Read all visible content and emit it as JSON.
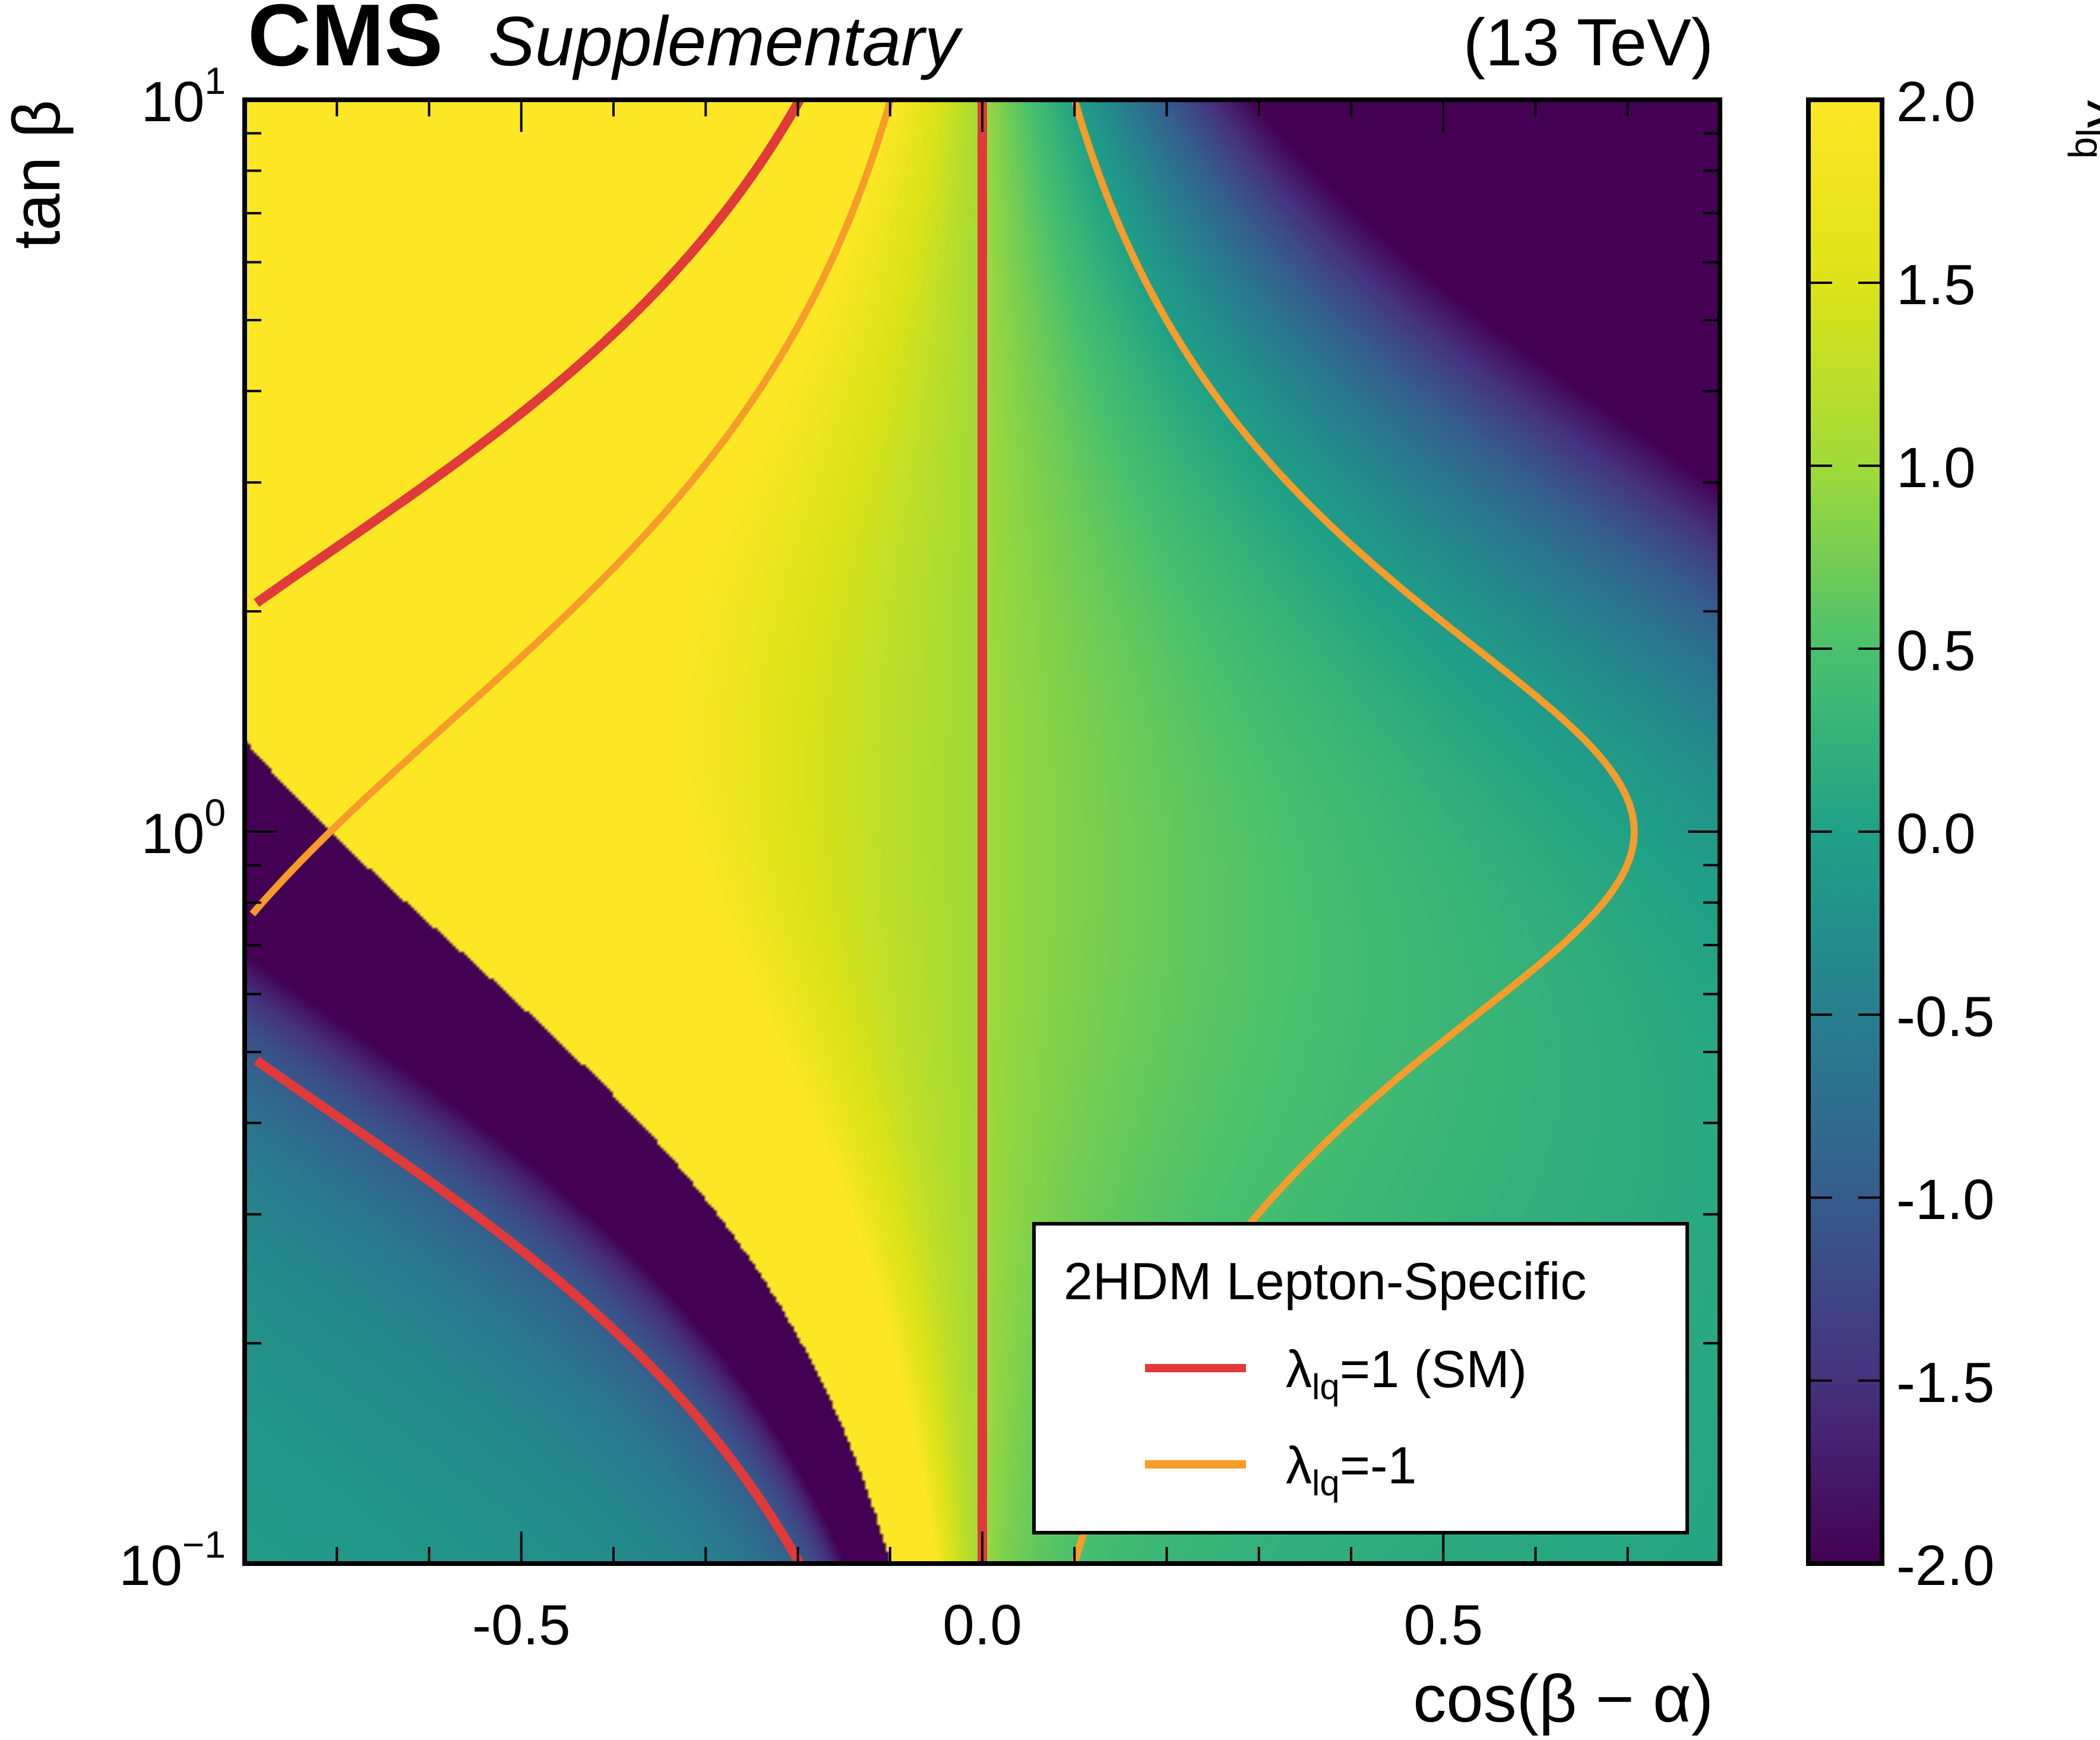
{
  "header": {
    "experiment": "CMS",
    "tag": "Supplementary",
    "energy": "(13 TeV)"
  },
  "axes": {
    "xlabel": "cos(β − α)",
    "ylabel": "tan β",
    "colorbar_label": "λ",
    "colorbar_label_sub": "lq"
  },
  "legend": {
    "title": "2HDM Lepton-Specific",
    "entries": [
      {
        "symbol": "λ",
        "sub": "lq",
        "text": "=1 (SM)",
        "color": "#e03a3a"
      },
      {
        "symbol": "λ",
        "sub": "lq",
        "text": "=-1",
        "color": "#f59c2a"
      }
    ]
  },
  "chart_data": {
    "type": "heatmap",
    "title": "",
    "xlabel": "cos(β − α)",
    "ylabel": "tan β",
    "xlim": [
      -0.8,
      0.8
    ],
    "ylim": [
      0.1,
      10
    ],
    "yscale": "log",
    "x_ticks": [
      {
        "value": -0.5,
        "label": "-0.5"
      },
      {
        "value": 0.0,
        "label": "0.0"
      },
      {
        "value": 0.5,
        "label": "0.5"
      }
    ],
    "y_ticks": [
      {
        "value": 0.1,
        "base": "10",
        "exp": "−1"
      },
      {
        "value": 1,
        "base": "10",
        "exp": "0"
      },
      {
        "value": 10,
        "base": "10",
        "exp": "1"
      }
    ],
    "colorbar": {
      "label": "λlq",
      "range": [
        -2.0,
        2.0
      ],
      "ticks": [
        "2.0",
        "1.5",
        "1.0",
        "0.5",
        "0.0",
        "-0.5",
        "-1.0",
        "-1.5",
        "-2.0"
      ],
      "colormap": "viridis"
    },
    "quantity": "λlq = (sin(β−α) − cos(β−α)·tanβ) / (sin(β−α) + cos(β−α)/tanβ)",
    "contours": [
      {
        "name": "λlq=1 (SM)",
        "level": 1,
        "color": "#e03a3a"
      },
      {
        "name": "λlq=-1",
        "level": -1,
        "color": "#f59c2a"
      }
    ],
    "grid": false,
    "legend_position": "bottom-right"
  }
}
